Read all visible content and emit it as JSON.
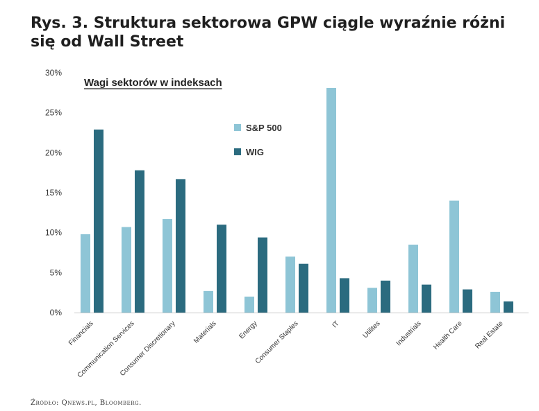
{
  "headline": "Rys. 3. Struktura sektorowa GPW ciągle wyraźnie różni się od Wall Street",
  "source": "Źródło: Qnews.pl, Bloomberg.",
  "chart_data": {
    "type": "bar",
    "title": "Wagi sektorów w indeksach",
    "categories": [
      "Financials",
      "Communication Services",
      "Consumer Discretionary",
      "Materials",
      "Energy",
      "Consumer Staples",
      "IT",
      "Utilites",
      "Industrials",
      "Health Care",
      "Real Estate"
    ],
    "series": [
      {
        "name": "S&P 500",
        "color": "#8ec5d6",
        "values": [
          9.8,
          10.7,
          11.7,
          2.7,
          2.0,
          7.0,
          28.1,
          3.1,
          8.5,
          14.0,
          2.6
        ]
      },
      {
        "name": "WIG",
        "color": "#2b6b7f",
        "values": [
          22.9,
          17.8,
          16.7,
          11.0,
          9.4,
          6.1,
          4.3,
          4.0,
          3.5,
          2.9,
          1.4
        ]
      }
    ],
    "ylim": [
      0,
      30
    ],
    "yticks": [
      0,
      5,
      10,
      15,
      20,
      25,
      30
    ],
    "ytick_labels": [
      "0%",
      "5%",
      "10%",
      "15%",
      "20%",
      "25%",
      "30%"
    ],
    "grid": false,
    "legend_position": "upper-middle"
  }
}
